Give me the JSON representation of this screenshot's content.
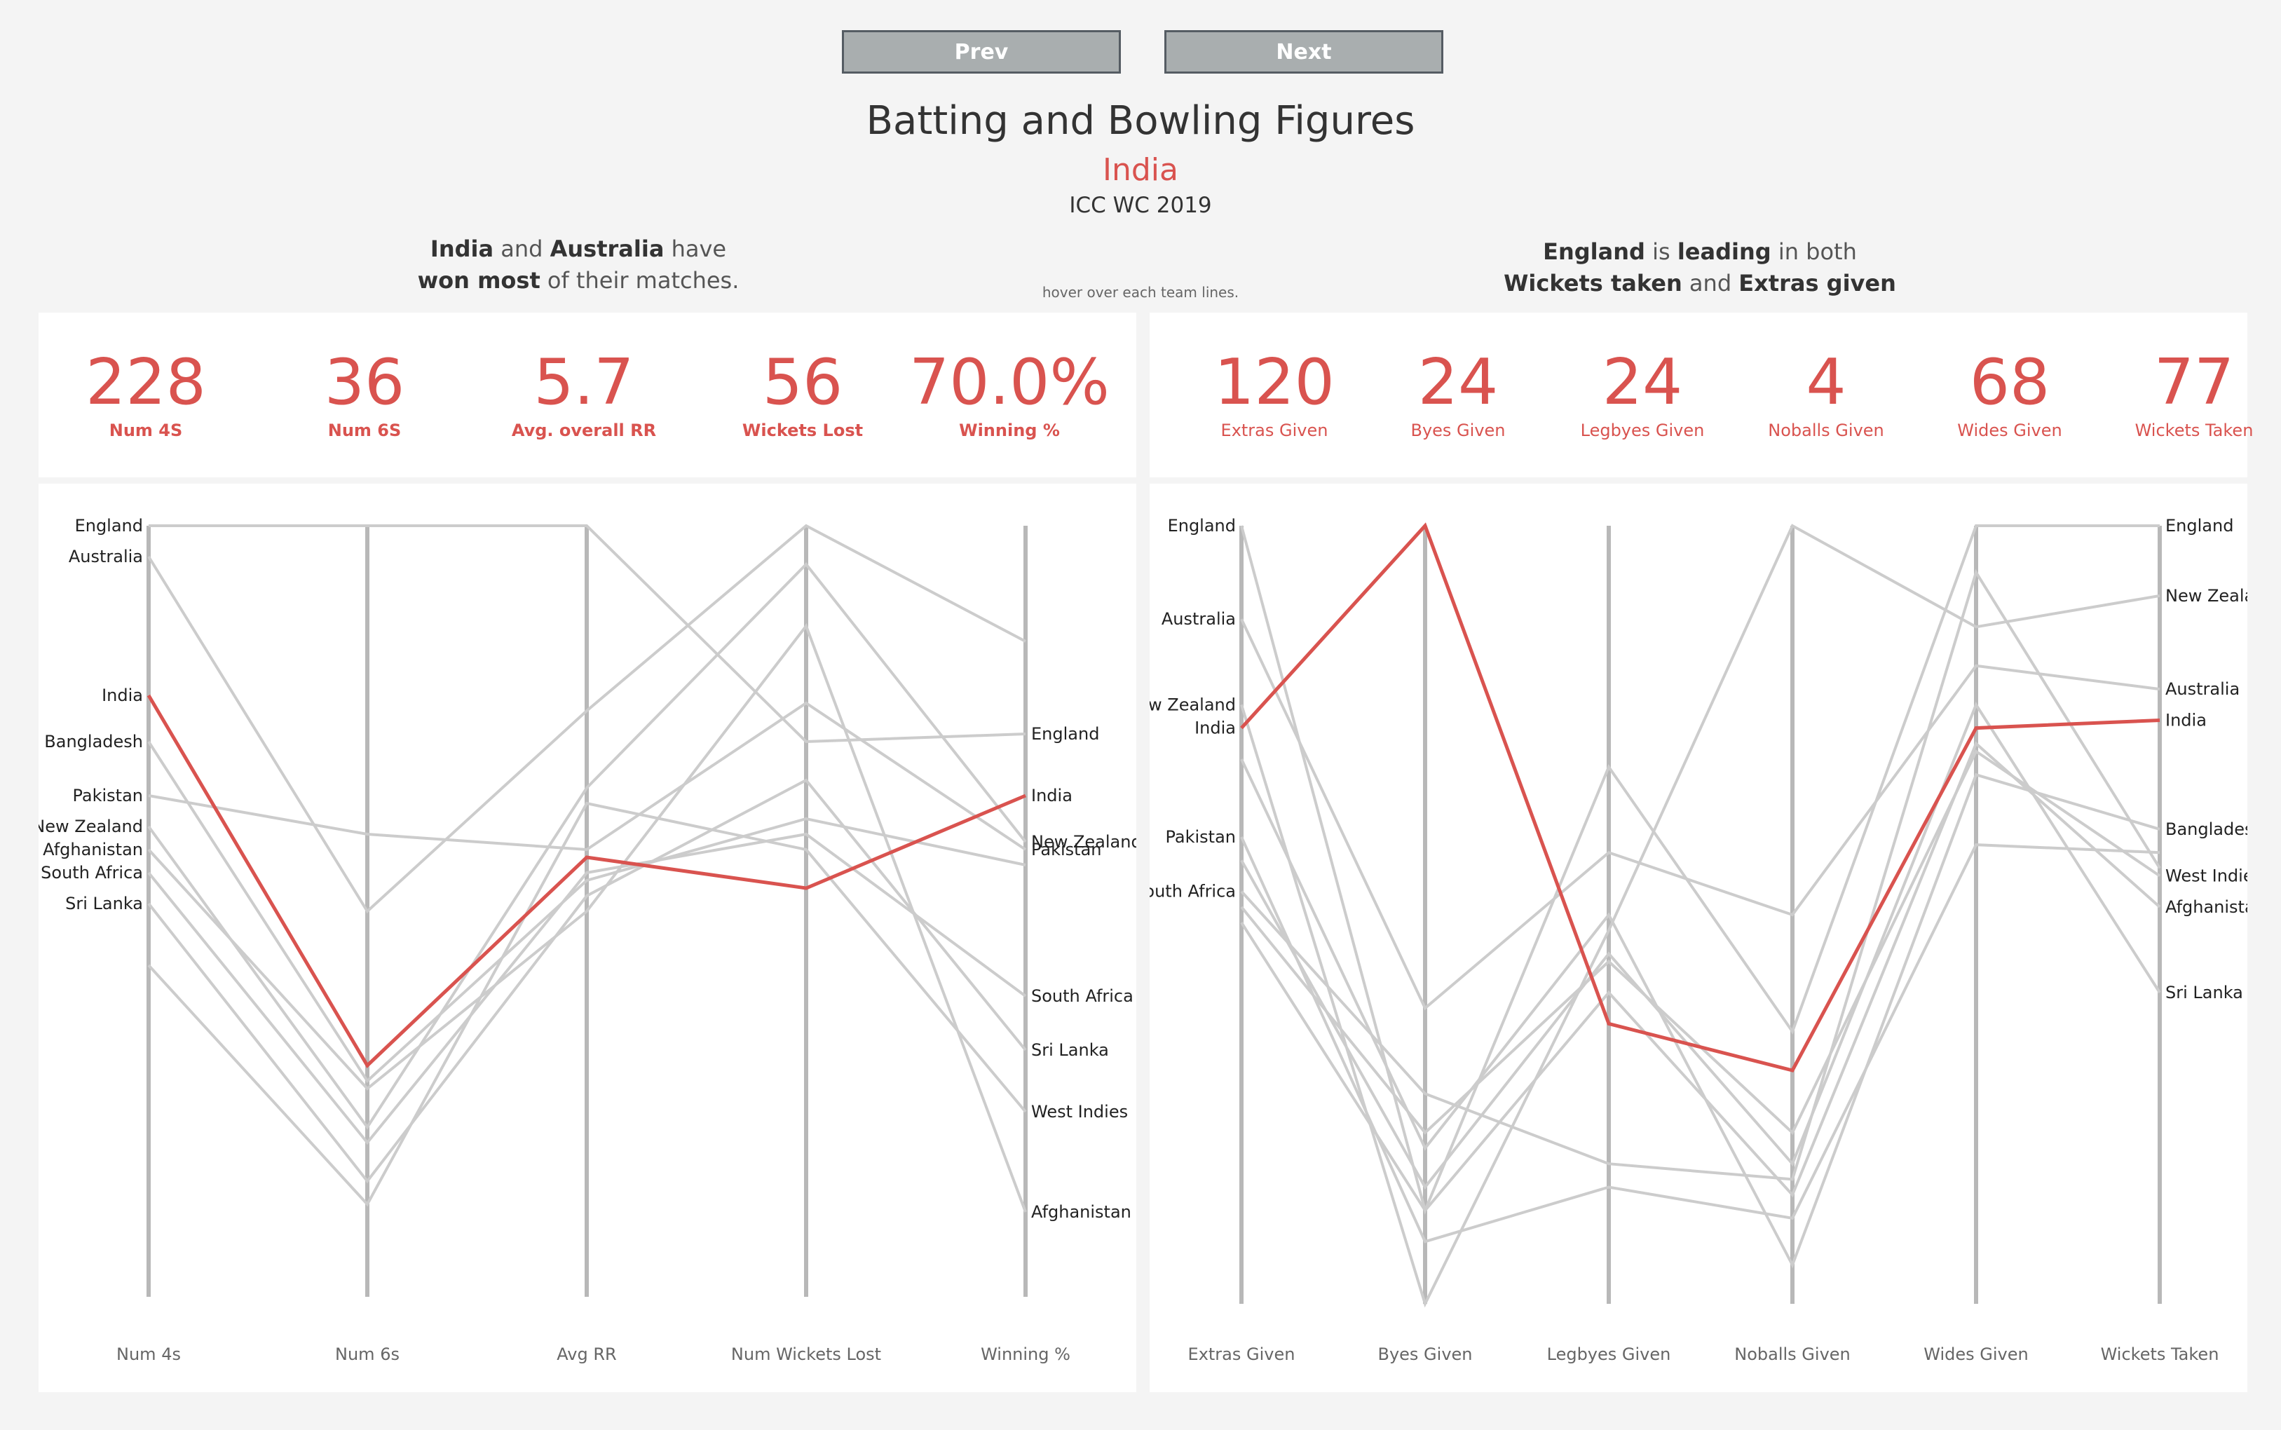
{
  "nav": {
    "prev_label": "Prev",
    "next_label": "Next"
  },
  "header": {
    "title": "Batting and Bowling Figures",
    "team": "India",
    "event": "ICC WC 2019"
  },
  "insights": {
    "left": {
      "t1": "India",
      "t2": " and ",
      "t3": "Australia",
      "t4": " have",
      "t5": "won most",
      "t6": " of their matches."
    },
    "right": {
      "t1": "England",
      "t2": " is ",
      "t3": "leading",
      "t4": " in both",
      "t5": "Wickets taken",
      "t6": " and ",
      "t7": "Extras given"
    },
    "hint": "hover over each team lines."
  },
  "batting_kpis": [
    {
      "value": "228",
      "label": "Num 4S"
    },
    {
      "value": "36",
      "label": "Num 6S"
    },
    {
      "value": "5.7",
      "label": "Avg. overall RR"
    },
    {
      "value": "56",
      "label": "Wickets Lost"
    },
    {
      "value": "70.0%",
      "label": "Winning %"
    }
  ],
  "bowling_kpis": [
    {
      "value": "120",
      "label": "Extras Given"
    },
    {
      "value": "24",
      "label": "Byes Given"
    },
    {
      "value": "24",
      "label": "Legbyes Given"
    },
    {
      "value": "4",
      "label": "Noballs Given"
    },
    {
      "value": "68",
      "label": "Wides Given"
    },
    {
      "value": "77",
      "label": "Wickets Taken"
    }
  ],
  "colors": {
    "highlight": "#d9534f",
    "line": "#cccccc",
    "axis": "#b8b8b8"
  },
  "chart_data": [
    {
      "type": "parallel-coordinates",
      "title": "Batting",
      "axes": [
        "Num 4s",
        "Num 6s",
        "Avg RR",
        "Num Wickets Lost",
        "Winning %"
      ],
      "normalized": true,
      "highlight": "India",
      "first_axis_labels": [
        "England",
        "Australia",
        "India",
        "Bangladesh",
        "Pakistan",
        "New Zealand",
        "Afghanistan",
        "South Africa",
        "Sri Lanka"
      ],
      "last_axis_labels": [
        "India",
        "England",
        "Pakistan",
        "New Zealand",
        "South Africa",
        "Sri Lanka",
        "West Indies",
        "Afghanistan"
      ],
      "series": [
        {
          "name": "England",
          "values": [
            1.0,
            1.0,
            1.0,
            0.72,
            0.73
          ]
        },
        {
          "name": "Australia",
          "values": [
            0.96,
            0.5,
            0.76,
            1.0,
            0.85
          ]
        },
        {
          "name": "India",
          "values": [
            0.78,
            0.3,
            0.57,
            0.53,
            0.65
          ]
        },
        {
          "name": "Bangladesh",
          "values": [
            0.72,
            0.28,
            0.54,
            0.62,
            0.56
          ]
        },
        {
          "name": "Pakistan",
          "values": [
            0.65,
            0.6,
            0.58,
            0.77,
            0.58
          ]
        },
        {
          "name": "New Zealand",
          "values": [
            0.61,
            0.22,
            0.66,
            0.95,
            0.59
          ]
        },
        {
          "name": "Afghanistan",
          "values": [
            0.58,
            0.27,
            0.5,
            0.87,
            0.11
          ]
        },
        {
          "name": "South Africa",
          "values": [
            0.55,
            0.2,
            0.55,
            0.6,
            0.39
          ]
        },
        {
          "name": "Sri Lanka",
          "values": [
            0.51,
            0.15,
            0.52,
            0.67,
            0.32
          ]
        },
        {
          "name": "West Indies",
          "values": [
            0.43,
            0.12,
            0.64,
            0.58,
            0.24
          ]
        }
      ]
    },
    {
      "type": "parallel-coordinates",
      "title": "Bowling",
      "axes": [
        "Extras Given",
        "Byes Given",
        "Legbyes Given",
        "Noballs Given",
        "Wides Given",
        "Wickets Taken"
      ],
      "normalized": true,
      "highlight": "India",
      "first_axis_labels": [
        "England",
        "Australia",
        "New Zealand",
        "India",
        "South Africa",
        "Pakistan"
      ],
      "last_axis_labels": [
        "England",
        "New Zealand",
        "Australia",
        "India",
        "Bangladesh",
        "West Indies",
        "Afghanistan",
        "Sri Lanka"
      ],
      "series": [
        {
          "name": "England",
          "values": [
            1.0,
            0.12,
            0.69,
            0.35,
            1.0,
            1.0
          ]
        },
        {
          "name": "Australia",
          "values": [
            0.88,
            0.38,
            0.58,
            0.5,
            0.82,
            0.79
          ]
        },
        {
          "name": "New Zealand",
          "values": [
            0.77,
            0.0,
            0.48,
            1.0,
            0.87,
            0.91
          ]
        },
        {
          "name": "India",
          "values": [
            0.74,
            1.0,
            0.36,
            0.3,
            0.74,
            0.75
          ]
        },
        {
          "name": "Bangladesh",
          "values": [
            0.7,
            0.2,
            0.5,
            0.05,
            0.68,
            0.61
          ]
        },
        {
          "name": "Pakistan",
          "values": [
            0.6,
            0.08,
            0.15,
            0.11,
            0.59,
            0.58
          ]
        },
        {
          "name": "South Africa",
          "values": [
            0.53,
            0.27,
            0.18,
            0.16,
            0.94,
            0.56
          ]
        },
        {
          "name": "West Indies",
          "values": [
            0.51,
            0.22,
            0.44,
            0.22,
            0.71,
            0.55
          ]
        },
        {
          "name": "Afghanistan",
          "values": [
            0.49,
            0.12,
            0.4,
            0.14,
            0.72,
            0.51
          ]
        },
        {
          "name": "Sri Lanka",
          "values": [
            0.57,
            0.15,
            0.45,
            0.18,
            0.77,
            0.4
          ]
        }
      ]
    }
  ]
}
